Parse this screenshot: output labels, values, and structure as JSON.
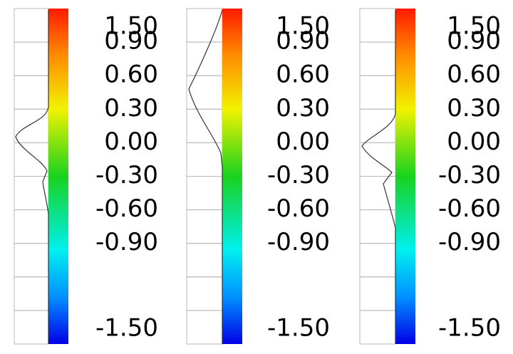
{
  "panels": [
    {
      "labels": [
        "1.50",
        "0.90",
        "0.60",
        "0.30",
        "0.00",
        "-0.30",
        "-0.60",
        "-0.90",
        "-1.50"
      ]
    },
    {
      "labels": [
        "1.50",
        "0.90",
        "0.60",
        "0.30",
        "0.00",
        "-0.30",
        "-0.60",
        "-0.90",
        "-1.50"
      ]
    },
    {
      "labels": [
        "1.50",
        "0.90",
        "0.60",
        "0.30",
        "0.00",
        "-0.30",
        "-0.60",
        "-0.90",
        "-1.50"
      ]
    }
  ]
}
